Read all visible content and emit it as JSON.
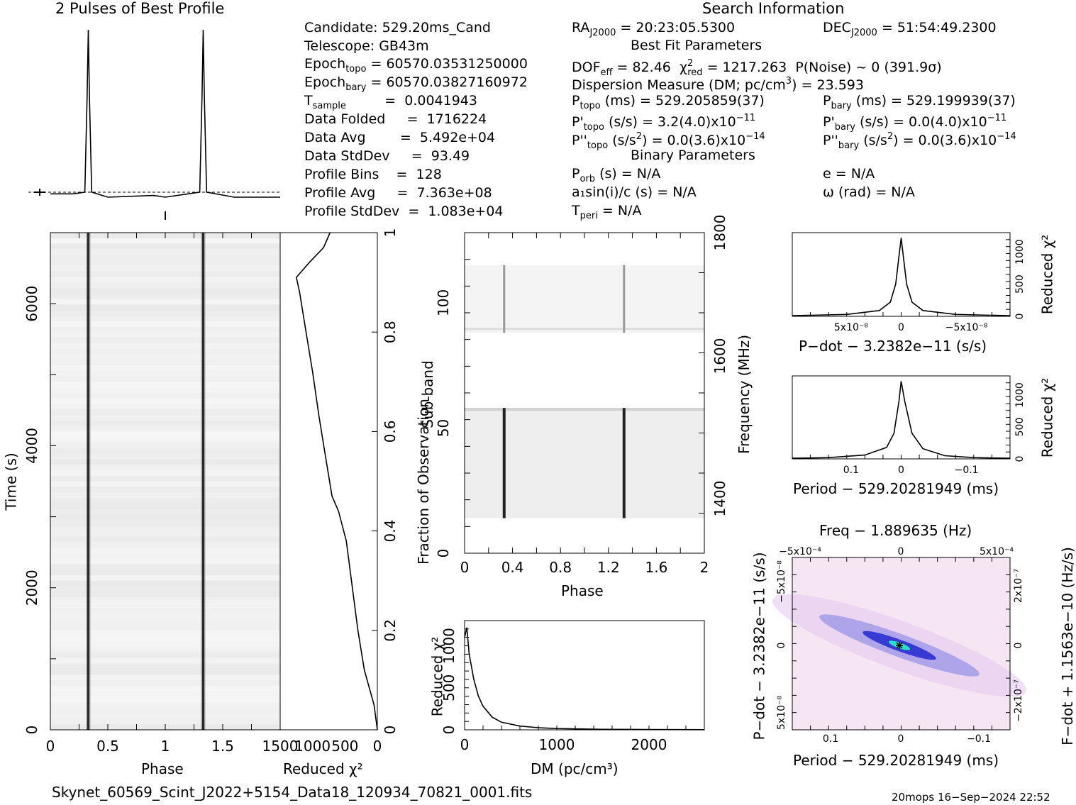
{
  "header": {
    "profile_title": "2 Pulses of Best Profile",
    "search_title": "Search Information",
    "best_fit_title": "Best Fit Parameters",
    "binary_title": "Binary Parameters"
  },
  "info_left": [
    {
      "label": "Candidate:  529.20ms_Cand"
    },
    {
      "label": "Telescope:  GB43m"
    },
    {
      "label": "Epoch",
      "sub": "topo",
      "value": " = 60570.03531250000"
    },
    {
      "label": "Epoch",
      "sub": "bary",
      "value": " = 60570.03827160972"
    },
    {
      "label": "T",
      "sub": "sample",
      "value": "         =  0.0041943"
    },
    {
      "label": "Data Folded",
      "value": "     =  1716224"
    },
    {
      "label": "Data Avg",
      "value": "        =  5.492e+04"
    },
    {
      "label": "Data StdDev",
      "value": "     =  93.49"
    },
    {
      "label": "Profile Bins",
      "value": "    =  128"
    },
    {
      "label": "Profile Avg",
      "value": "     =  7.363e+08"
    },
    {
      "label": "Profile StdDev",
      "value": "  =  1.083e+04"
    }
  ],
  "info_mid": {
    "ra": "= 20:23:05.5300",
    "dec": "= 51:54:49.2300",
    "dof": "= 82.46",
    "chi2": "= 1217.263",
    "pnoise": "P(Noise) ~ 0    (391.9σ)",
    "dm": "Dispersion Measure (DM; pc/cm",
    "dm_val": ") = 23.593",
    "ptopo": "(ms) =  529.205859(37)",
    "pbary": "(ms) =  529.199939(37)",
    "pdtopo": "(s/s) =  3.2(4.0)x10",
    "pdtopo_exp": "−11",
    "pdbary": "(s/s) = 0.0(4.0)x10",
    "pdbary_exp": "−11",
    "pddtopo": "(s/s",
    "pddtopo_val": ") = 0.0(3.6)x10",
    "pddtopo_exp": "−14",
    "pddbary": "(s/s",
    "pddbary_val": ") = 0.0(3.6)x10",
    "pddbary_exp": "−14",
    "porb": "(s) = N/A",
    "a1": "a₁sin(i)/c (s) = N/A",
    "tperi": "= N/A",
    "e": "e = N/A",
    "omega": "ω (rad) = N/A"
  },
  "footer": {
    "filename": "Skynet_60569_Scint_J2022+5154_Data18_120934_70821_0001.fits",
    "stamp": "20mops 16−Sep−2024 22:52"
  },
  "chart_data": [
    {
      "type": "line",
      "name": "profile",
      "title": "2 Pulses of Best Profile",
      "x": [
        0,
        0.2,
        0.3,
        0.32,
        0.33,
        0.34,
        0.36,
        0.5,
        0.9,
        1.0,
        1.2,
        1.3,
        1.32,
        1.33,
        1.34,
        1.36,
        1.6,
        2.0
      ],
      "y": [
        0.02,
        0.02,
        0.03,
        0.6,
        1.0,
        0.6,
        0.03,
        0.0,
        0.01,
        0.0,
        0.02,
        0.03,
        0.6,
        1.0,
        0.6,
        0.03,
        0.0,
        0.0
      ]
    },
    {
      "type": "heatmap",
      "name": "time-phase",
      "xlabel": "Phase",
      "ylabel": "Time (s)",
      "xlim": [
        0,
        2
      ],
      "ylim": [
        0,
        7000
      ],
      "x_ticks": [
        "0",
        "0.5",
        "1",
        "1.5"
      ],
      "y_ticks": [
        "0",
        "2000",
        "4000",
        "6000"
      ],
      "pulse_phases": [
        0.33,
        1.33
      ]
    },
    {
      "type": "line",
      "name": "reduced-chi2-vs-time",
      "xlabel": "Reduced χ²",
      "ylabel": "Fraction of Observation",
      "x_ticks": [
        "1500",
        "1000",
        "500",
        "0"
      ],
      "y_ticks": [
        "0",
        "0.2",
        "0.4",
        "0.6",
        "0.8",
        "1"
      ],
      "xlim": [
        1500,
        0
      ],
      "ylim": [
        0,
        1
      ],
      "x": [
        0,
        50,
        200,
        300,
        400,
        480,
        600,
        700,
        800,
        900,
        1000,
        1100,
        1200,
        1250,
        1050,
        830,
        730
      ],
      "y": [
        0,
        0.05,
        0.12,
        0.2,
        0.3,
        0.38,
        0.44,
        0.47,
        0.55,
        0.63,
        0.72,
        0.8,
        0.88,
        0.91,
        0.94,
        0.97,
        1.0
      ]
    },
    {
      "type": "heatmap",
      "name": "subband-phase",
      "xlabel": "Phase",
      "ylabel": "Sub-band",
      "y2label": "Frequency (MHz)",
      "xlim": [
        0,
        2
      ],
      "ylim": [
        0,
        128
      ],
      "x_ticks": [
        "0",
        "0.4",
        "0.8",
        "1.2",
        "1.6",
        "2"
      ],
      "y_ticks": [
        "0",
        "50",
        "100"
      ],
      "y2_ticks": [
        "1400",
        "1600",
        "1800"
      ],
      "pulse_phases": [
        0.33,
        1.33
      ]
    },
    {
      "type": "line",
      "name": "dm-curve",
      "xlabel": "DM (pc/cm³)",
      "ylabel": "Reduced χ²",
      "xlim": [
        0,
        2600
      ],
      "ylim": [
        0,
        1300
      ],
      "x_ticks": [
        "0",
        "1000",
        "2000"
      ],
      "y_ticks": [
        "0",
        "500",
        "1000"
      ],
      "x": [
        0,
        23.6,
        50,
        100,
        150,
        200,
        300,
        400,
        600,
        800,
        1000,
        1500,
        2000,
        2600
      ],
      "y": [
        1100,
        1217,
        900,
        600,
        400,
        280,
        150,
        90,
        45,
        25,
        15,
        6,
        3,
        2
      ]
    },
    {
      "type": "line",
      "name": "pdot-curve",
      "xlabel": "P−dot − 3.2382e−11 (s/s)",
      "ylabel": "Reduced χ²",
      "x_ticks": [
        "5x10⁻⁸",
        "0",
        "−5x10⁻⁸"
      ],
      "y_ticks": [
        "0",
        "500",
        "1000"
      ],
      "ylim": [
        0,
        1300
      ],
      "x": [
        -1,
        -0.5,
        -0.2,
        -0.1,
        -0.05,
        0,
        0.05,
        0.1,
        0.2,
        0.5,
        1
      ],
      "y": [
        10,
        30,
        90,
        220,
        500,
        1217,
        500,
        220,
        90,
        30,
        10
      ]
    },
    {
      "type": "line",
      "name": "period-curve",
      "xlabel": "Period − 529.20281949 (ms)",
      "ylabel": "Reduced χ²",
      "x_ticks": [
        "0.1",
        "0",
        "−0.1"
      ],
      "y_ticks": [
        "0",
        "500",
        "1000"
      ],
      "ylim": [
        0,
        1300
      ],
      "x": [
        0.15,
        0.1,
        0.05,
        0.02,
        0.01,
        0.003,
        0,
        -0.005,
        -0.015,
        -0.03,
        -0.06,
        -0.1,
        -0.15
      ],
      "y": [
        10,
        20,
        60,
        180,
        400,
        900,
        1217,
        900,
        400,
        160,
        50,
        20,
        10
      ]
    },
    {
      "type": "heatmap",
      "name": "p-pdot-plane",
      "title": "Freq − 1.889635 (Hz)",
      "xlabel": "Period − 529.20281949 (ms)",
      "ylabel": "P−dot − 3.2382e−11 (s/s)",
      "y2label": "F−dot + 1.1563e−10 (Hz/s)",
      "x_ticks": [
        "0.1",
        "0",
        "−0.1"
      ],
      "x2_ticks": [
        "−5x10⁻⁴",
        "0",
        "5x10⁻⁴"
      ],
      "y_ticks": [
        "5x10⁻⁸",
        "0",
        "−5x10⁻⁸"
      ],
      "y2_ticks": [
        "−2x10⁻⁷",
        "0",
        "2x10⁻⁷"
      ]
    }
  ],
  "colors": {
    "ink": "#000000",
    "grid": "#bdbdbd",
    "plane_bg": "#f6e6f4",
    "plane_peak": "#2a2fd0",
    "plane_core": "#23e3c8"
  }
}
